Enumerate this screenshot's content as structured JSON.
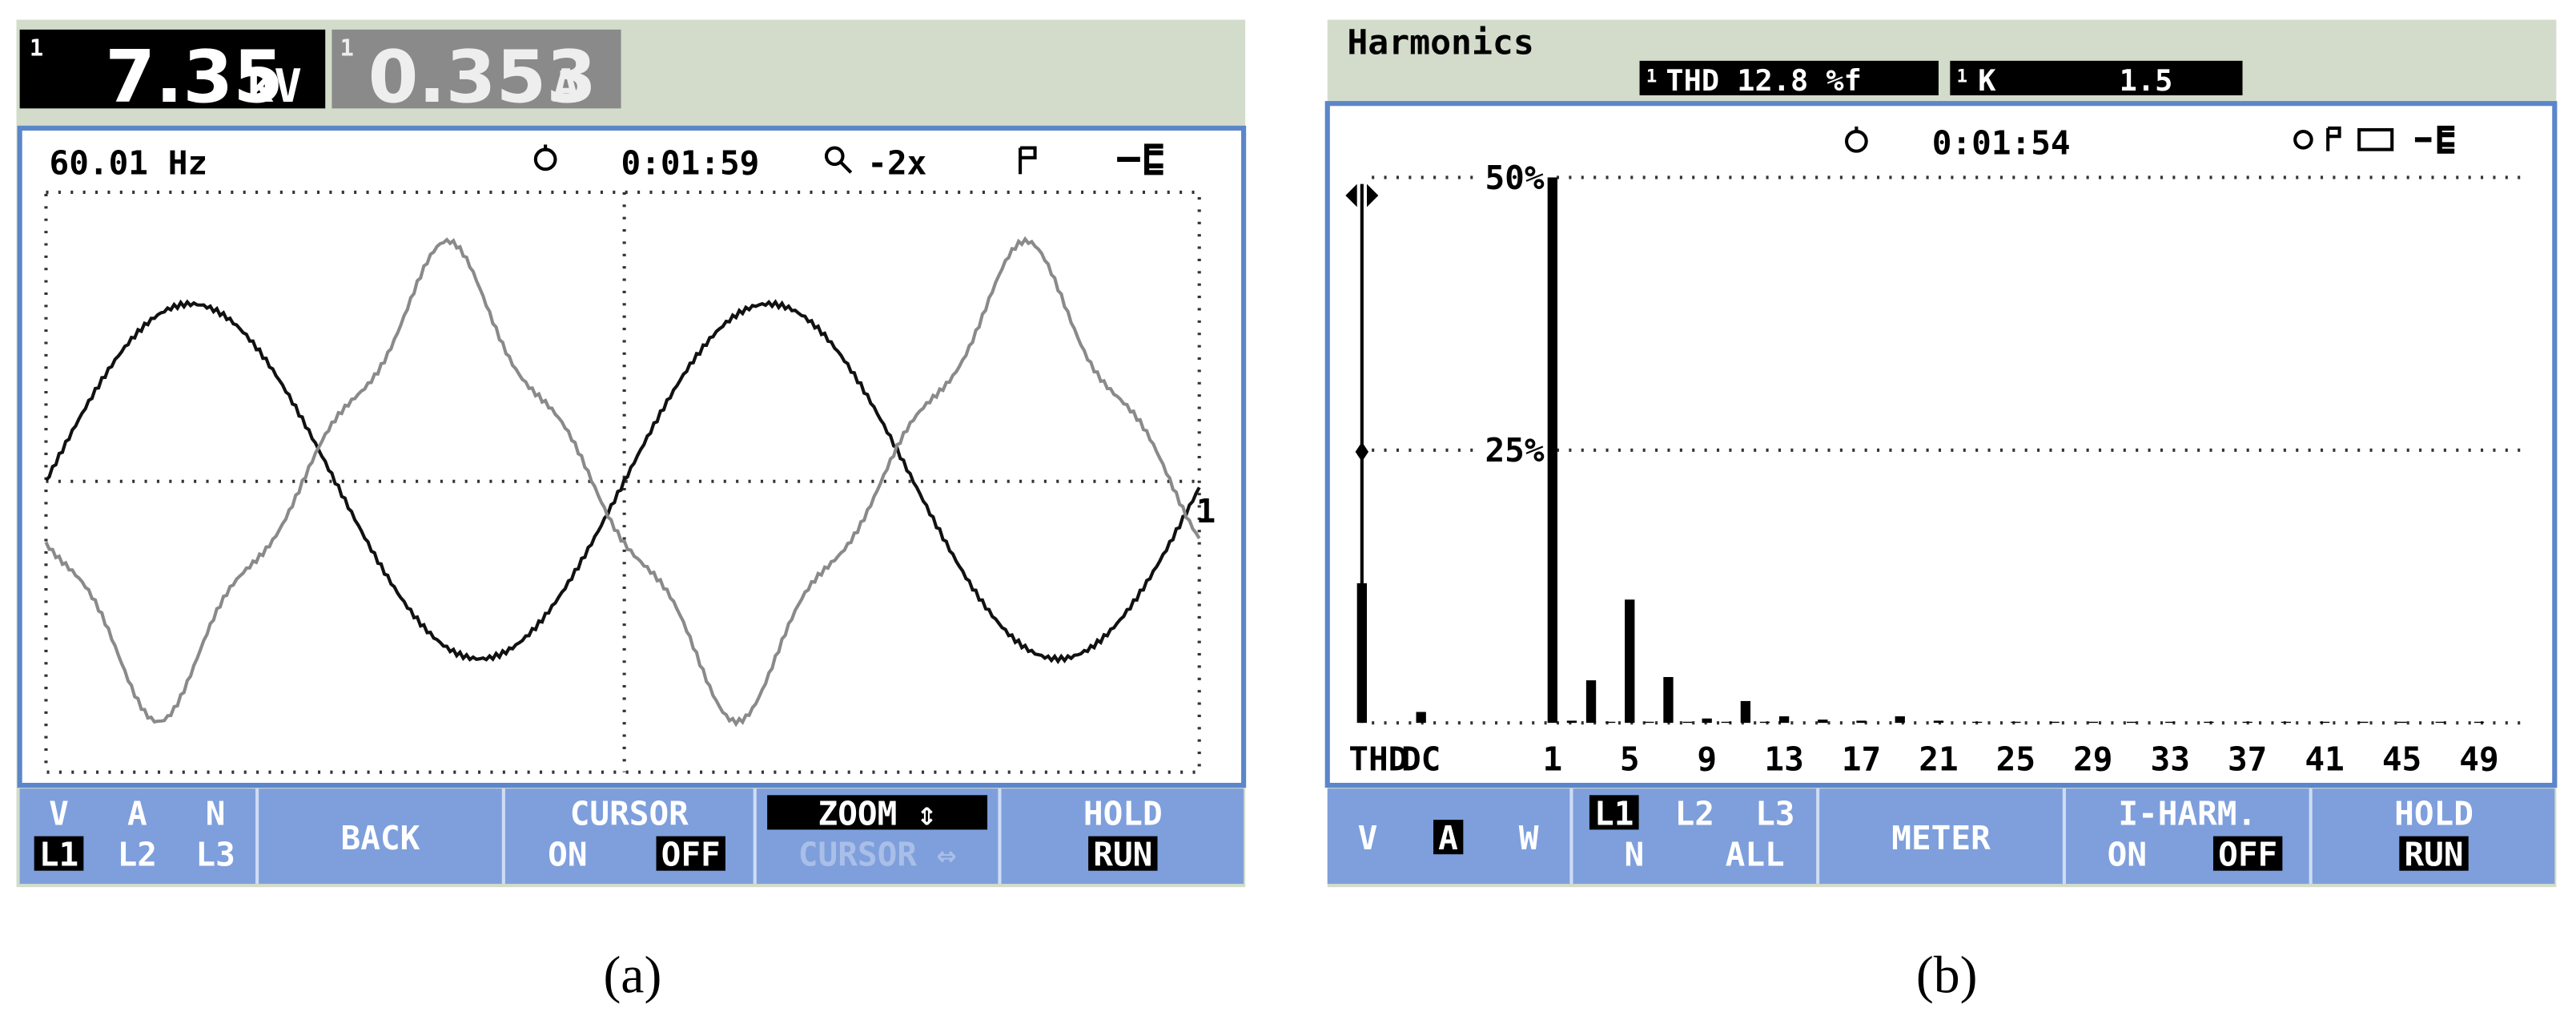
{
  "left_panel": {
    "readings": [
      {
        "channel": "1",
        "value": "7.35",
        "unit": "kV"
      },
      {
        "channel": "1",
        "value": "0.353",
        "unit": "A"
      }
    ],
    "status": {
      "frequency": "60.01 Hz",
      "time": "0:01:59",
      "zoom": "-2x"
    },
    "trace_label": "1",
    "buttons": [
      {
        "lines": [
          [
            "V",
            "A",
            "N"
          ],
          [
            "L1",
            "L2",
            "L3"
          ]
        ],
        "highlight": [
          [
            1,
            0
          ]
        ]
      },
      {
        "lines": [
          [
            "BACK"
          ]
        ],
        "highlight": []
      },
      {
        "lines": [
          [
            "CURSOR"
          ],
          [
            "ON",
            "OFF"
          ]
        ],
        "highlight": [
          [
            1,
            1
          ]
        ]
      },
      {
        "lines": [
          [
            "ZOOM ⇕"
          ],
          [
            "CURSOR ⇔"
          ]
        ],
        "highlight": [
          [
            0,
            0
          ]
        ],
        "dimmed": [
          1
        ]
      },
      {
        "lines": [
          [
            "HOLD"
          ],
          [
            "RUN"
          ]
        ],
        "highlight": [
          [
            1,
            0
          ]
        ]
      }
    ],
    "caption": "(a)"
  },
  "right_panel": {
    "title": "Harmonics",
    "thd": {
      "channel": "1",
      "text": "THD 12.8 %f"
    },
    "k": {
      "channel": "1",
      "label": "K",
      "value": "1.5"
    },
    "status": {
      "time": "0:01:54"
    },
    "buttons": [
      {
        "lines": [
          [
            "V",
            "A",
            "W"
          ]
        ],
        "highlight": [
          [
            0,
            1
          ]
        ]
      },
      {
        "lines": [
          [
            "L1",
            "L2",
            "L3"
          ],
          [
            "N",
            "ALL"
          ]
        ],
        "highlight": [
          [
            0,
            0
          ]
        ]
      },
      {
        "lines": [
          [
            "METER"
          ]
        ],
        "highlight": []
      },
      {
        "lines": [
          [
            "I-HARM."
          ],
          [
            "ON",
            "OFF"
          ]
        ],
        "highlight": [
          [
            1,
            1
          ]
        ]
      },
      {
        "lines": [
          [
            "HOLD"
          ],
          [
            "RUN"
          ]
        ],
        "highlight": [
          [
            1,
            0
          ]
        ]
      }
    ],
    "caption": "(b)"
  },
  "chart_data": {
    "type": "bar",
    "color": "#000000",
    "categories": [
      "THD",
      "DC",
      "1",
      null,
      null,
      null,
      "5",
      null,
      null,
      null,
      "9",
      null,
      null,
      null,
      "13",
      null,
      null,
      null,
      "17",
      null,
      null,
      null,
      "21",
      null,
      null,
      null,
      "25",
      null,
      null,
      null,
      "29",
      null,
      null,
      null,
      "33",
      null,
      null,
      null,
      "37",
      null,
      null,
      null,
      "41",
      null,
      null,
      null,
      "45",
      null,
      null,
      null,
      "49",
      null
    ],
    "values": [
      12.8,
      1,
      50,
      0.2,
      3.9,
      0.1,
      11.3,
      0.1,
      4.2,
      0.1,
      0.4,
      0.1,
      2,
      0.1,
      0.6,
      0,
      0.3,
      0,
      0.2,
      0,
      0.6,
      0,
      0.2,
      0,
      0.1,
      0,
      0.1,
      0,
      0.1,
      0,
      0.1,
      0,
      0.1,
      0,
      0.1,
      0,
      0.1,
      0,
      0.1,
      0,
      0.1,
      0,
      0.1,
      0,
      0.1,
      0,
      0.1,
      0,
      0.1,
      0,
      0.1,
      0
    ],
    "ylim": [
      0,
      50
    ],
    "yticks": [
      {
        "value": 25,
        "label": "25%"
      },
      {
        "value": 50,
        "label": "50%"
      }
    ],
    "grid": true
  }
}
